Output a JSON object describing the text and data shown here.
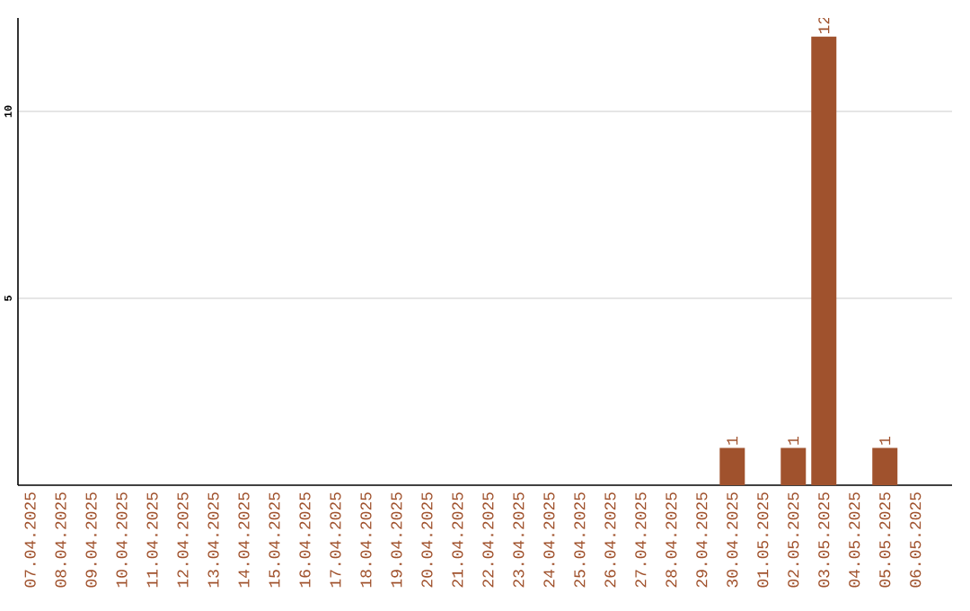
{
  "chart_data": {
    "type": "bar",
    "categories": [
      "07.04.2025",
      "08.04.2025",
      "09.04.2025",
      "10.04.2025",
      "11.04.2025",
      "12.04.2025",
      "13.04.2025",
      "14.04.2025",
      "15.04.2025",
      "16.04.2025",
      "17.04.2025",
      "18.04.2025",
      "19.04.2025",
      "20.04.2025",
      "21.04.2025",
      "22.04.2025",
      "23.04.2025",
      "24.04.2025",
      "25.04.2025",
      "26.04.2025",
      "27.04.2025",
      "28.04.2025",
      "29.04.2025",
      "30.04.2025",
      "01.05.2025",
      "02.05.2025",
      "03.05.2025",
      "04.05.2025",
      "05.05.2025",
      "06.05.2025"
    ],
    "values": [
      0,
      0,
      0,
      0,
      0,
      0,
      0,
      0,
      0,
      0,
      0,
      0,
      0,
      0,
      0,
      0,
      0,
      0,
      0,
      0,
      0,
      0,
      0,
      1,
      0,
      1,
      12,
      0,
      1,
      0
    ],
    "value_labels": [
      null,
      null,
      null,
      null,
      null,
      null,
      null,
      null,
      null,
      null,
      null,
      null,
      null,
      null,
      null,
      null,
      null,
      null,
      null,
      null,
      null,
      null,
      null,
      "1",
      null,
      "1",
      "12",
      null,
      "1",
      null
    ],
    "color": "#a0522d",
    "ylim": [
      0,
      12.5
    ],
    "yticks": [
      5,
      10
    ],
    "grid": "y"
  }
}
